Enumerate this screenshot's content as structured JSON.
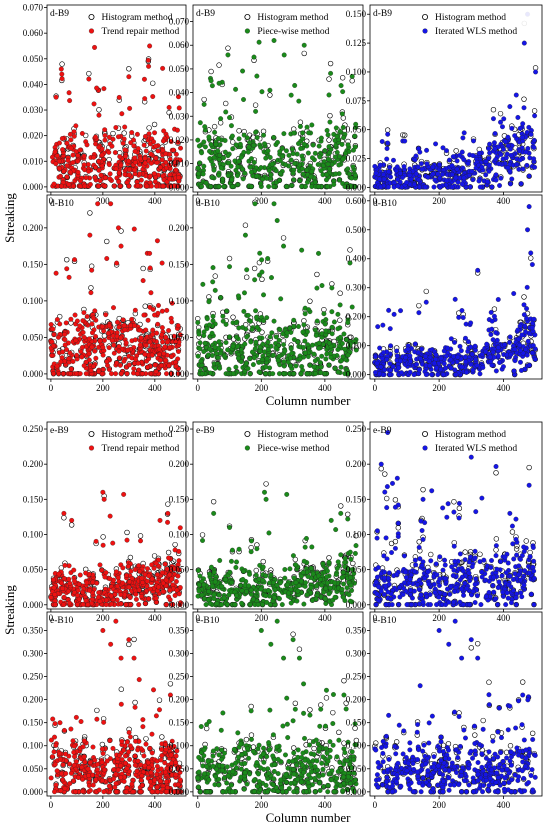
{
  "figure": {
    "ylabel": "Streaking",
    "xlabel": "Column number"
  },
  "legend_labels": {
    "histogram": "Histogram method",
    "trend": "Trend repair method",
    "piecewise": "Piece-wise method",
    "wls": "Iterated WLS method"
  },
  "colors": {
    "red": "#ee1111",
    "green": "#1a8a1a",
    "blue": "#1515e6",
    "histogram_edge": "#000000"
  },
  "chart_data": [
    {
      "type": "scatter",
      "panel": "d-B9",
      "method": "Trend repair method",
      "color": "red",
      "ylim": [
        -0.002,
        0.071
      ],
      "yticks": [
        0.0,
        0.01,
        0.02,
        0.03,
        0.04,
        0.05,
        0.06,
        0.07
      ],
      "ytick_labels": [
        "0.000",
        "0.010",
        "0.020",
        "0.030",
        "0.040",
        "0.050",
        "0.060",
        "0.070"
      ],
      "xlim": [
        -15,
        520
      ],
      "xticks": [
        0,
        200,
        400
      ],
      "base": 0.0085,
      "spread": 0.009,
      "tail": 0.045,
      "outliers": [
        [
          20,
          0.035
        ],
        [
          40,
          0.046
        ],
        [
          42,
          0.044
        ],
        [
          380,
          0.055
        ],
        [
          300,
          0.043
        ],
        [
          360,
          0.042
        ],
        [
          455,
          0.031
        ]
      ]
    },
    {
      "type": "scatter",
      "panel": "d-B9",
      "method": "Piece-wise method",
      "color": "green",
      "ylim": [
        -0.002,
        0.077
      ],
      "yticks": [
        0.0,
        0.01,
        0.02,
        0.03,
        0.04,
        0.05,
        0.06,
        0.07
      ],
      "ytick_labels": [
        "0.000",
        "0.010",
        "0.020",
        "0.030",
        "0.040",
        "0.050",
        "0.060",
        "0.070"
      ],
      "xlim": [
        -15,
        520
      ],
      "xticks": [
        0,
        200,
        400
      ],
      "base": 0.0095,
      "spread": 0.01,
      "tail": 0.048,
      "outliers": [
        [
          20,
          0.035
        ],
        [
          40,
          0.046
        ],
        [
          42,
          0.045
        ],
        [
          240,
          0.062
        ],
        [
          335,
          0.06
        ],
        [
          305,
          0.043
        ],
        [
          455,
          0.031
        ]
      ]
    },
    {
      "type": "scatter",
      "panel": "d-B9",
      "method": "Iterated WLS method",
      "color": "blue",
      "ylim": [
        -0.004,
        0.158
      ],
      "yticks": [
        0.0,
        0.025,
        0.05,
        0.075,
        0.1,
        0.125,
        0.15
      ],
      "ytick_labels": [
        "0.000",
        "0.025",
        "0.050",
        "0.075",
        "0.100",
        "0.125",
        "0.150"
      ],
      "xlim": [
        -15,
        520
      ],
      "xticks": [
        0,
        200,
        400
      ],
      "base": 0.007,
      "spread": 0.01,
      "tail": 0.03,
      "rising": 0.06,
      "outliers": [
        [
          40,
          0.046
        ],
        [
          475,
          0.15
        ],
        [
          465,
          0.125
        ],
        [
          440,
          0.08
        ],
        [
          500,
          0.1
        ],
        [
          420,
          0.07
        ]
      ]
    },
    {
      "type": "scatter",
      "panel": "d-B10",
      "method": "Trend repair method",
      "color": "red",
      "ylim": [
        -0.007,
        0.245
      ],
      "yticks": [
        0.0,
        0.05,
        0.1,
        0.15,
        0.2
      ],
      "ytick_labels": [
        "0.000",
        "0.050",
        "0.100",
        "0.150",
        "0.200"
      ],
      "xlim": [
        -15,
        520
      ],
      "xticks": [
        0,
        200,
        400
      ],
      "base": 0.035,
      "spread": 0.03,
      "tail": 0.13,
      "outliers": [
        [
          180,
          0.233
        ],
        [
          230,
          0.233
        ],
        [
          150,
          0.19
        ],
        [
          260,
          0.2
        ],
        [
          270,
          0.175
        ],
        [
          380,
          0.165
        ],
        [
          215,
          0.158
        ]
      ]
    },
    {
      "type": "scatter",
      "panel": "d-B10",
      "method": "Piece-wise method",
      "color": "green",
      "ylim": [
        -0.007,
        0.245
      ],
      "yticks": [
        0.0,
        0.05,
        0.1,
        0.15,
        0.2
      ],
      "ytick_labels": [
        "0.000",
        "0.050",
        "0.100",
        "0.150",
        "0.200"
      ],
      "xlim": [
        -15,
        520
      ],
      "xticks": [
        0,
        200,
        400
      ],
      "base": 0.035,
      "spread": 0.03,
      "tail": 0.13,
      "outliers": [
        [
          180,
          0.233
        ],
        [
          240,
          0.233
        ],
        [
          150,
          0.19
        ],
        [
          250,
          0.21
        ],
        [
          270,
          0.175
        ],
        [
          380,
          0.165
        ],
        [
          220,
          0.158
        ]
      ]
    },
    {
      "type": "scatter",
      "panel": "d-B10",
      "method": "Iterated WLS method",
      "color": "blue",
      "ylim": [
        -0.015,
        0.62
      ],
      "yticks": [
        0.0,
        0.1,
        0.2,
        0.3,
        0.4,
        0.5,
        0.6
      ],
      "ytick_labels": [
        "0.000",
        "0.100",
        "0.200",
        "0.300",
        "0.400",
        "0.500",
        "0.600"
      ],
      "xlim": [
        -15,
        520
      ],
      "xticks": [
        0,
        200,
        400
      ],
      "base": 0.04,
      "spread": 0.04,
      "tail": 0.18,
      "rising": 0.15,
      "outliers": [
        [
          480,
          0.58
        ],
        [
          475,
          0.5
        ],
        [
          485,
          0.42
        ],
        [
          490,
          0.38
        ],
        [
          320,
          0.36
        ],
        [
          250,
          0.26
        ],
        [
          160,
          0.25
        ]
      ]
    },
    {
      "type": "scatter",
      "panel": "e-B9",
      "method": "Trend repair method",
      "color": "red",
      "ylim": [
        -0.006,
        0.26
      ],
      "yticks": [
        0.0,
        0.05,
        0.1,
        0.15,
        0.2,
        0.25
      ],
      "ytick_labels": [
        "0.000",
        "0.050",
        "0.100",
        "0.150",
        "0.200",
        "0.250"
      ],
      "xlim": [
        -15,
        520
      ],
      "xticks": [
        0,
        200,
        400
      ],
      "base": 0.02,
      "spread": 0.02,
      "tail": 0.08,
      "rising": 0.04,
      "outliers": [
        [
          50,
          0.13
        ],
        [
          200,
          0.16
        ],
        [
          205,
          0.15
        ],
        [
          280,
          0.157
        ],
        [
          450,
          0.13
        ],
        [
          420,
          0.12
        ],
        [
          80,
          0.12
        ]
      ]
    },
    {
      "type": "scatter",
      "panel": "e-B9",
      "method": "Piece-wise method",
      "color": "green",
      "ylim": [
        -0.006,
        0.26
      ],
      "yticks": [
        0.0,
        0.05,
        0.1,
        0.15,
        0.2,
        0.25
      ],
      "ytick_labels": [
        "0.000",
        "0.050",
        "0.100",
        "0.150",
        "0.200",
        "0.250"
      ],
      "xlim": [
        -15,
        520
      ],
      "xticks": [
        0,
        200,
        400
      ],
      "base": 0.02,
      "spread": 0.02,
      "tail": 0.08,
      "rising": 0.04,
      "outliers": [
        [
          50,
          0.13
        ],
        [
          210,
          0.16
        ],
        [
          215,
          0.15
        ],
        [
          280,
          0.157
        ],
        [
          450,
          0.13
        ],
        [
          420,
          0.12
        ],
        [
          100,
          0.11
        ]
      ]
    },
    {
      "type": "scatter",
      "panel": "e-B9",
      "method": "Iterated WLS method",
      "color": "blue",
      "ylim": [
        -0.006,
        0.26
      ],
      "yticks": [
        0.0,
        0.05,
        0.1,
        0.15,
        0.2,
        0.25
      ],
      "ytick_labels": [
        "0.000",
        "0.050",
        "0.100",
        "0.150",
        "0.200",
        "0.250"
      ],
      "xlim": [
        -15,
        520
      ],
      "xticks": [
        0,
        200,
        400
      ],
      "base": 0.025,
      "spread": 0.025,
      "tail": 0.14,
      "rising": 0.04,
      "outliers": [
        [
          40,
          0.245
        ],
        [
          300,
          0.21
        ],
        [
          20,
          0.2
        ],
        [
          70,
          0.18
        ],
        [
          480,
          0.17
        ],
        [
          420,
          0.13
        ],
        [
          150,
          0.15
        ]
      ]
    },
    {
      "type": "scatter",
      "panel": "e-B10",
      "method": "Trend repair method",
      "color": "red",
      "ylim": [
        -0.009,
        0.39
      ],
      "yticks": [
        0.0,
        0.05,
        0.1,
        0.15,
        0.2,
        0.25,
        0.3,
        0.35
      ],
      "ytick_labels": [
        "0.000",
        "0.050",
        "0.100",
        "0.150",
        "0.200",
        "0.250",
        "0.300",
        "0.350"
      ],
      "xlim": [
        -15,
        520
      ],
      "xticks": [
        0,
        200,
        400
      ],
      "base": 0.045,
      "spread": 0.04,
      "tail": 0.15,
      "outliers": [
        [
          250,
          0.37
        ],
        [
          200,
          0.35
        ],
        [
          300,
          0.33
        ],
        [
          230,
          0.32
        ],
        [
          320,
          0.29
        ],
        [
          270,
          0.29
        ],
        [
          460,
          0.21
        ]
      ]
    },
    {
      "type": "scatter",
      "panel": "e-B10",
      "method": "Piece-wise method",
      "color": "green",
      "ylim": [
        -0.009,
        0.39
      ],
      "yticks": [
        0.0,
        0.05,
        0.1,
        0.15,
        0.2,
        0.25,
        0.3,
        0.35
      ],
      "ytick_labels": [
        "0.000",
        "0.050",
        "0.100",
        "0.150",
        "0.200",
        "0.250",
        "0.300",
        "0.350"
      ],
      "xlim": [
        -15,
        520
      ],
      "xticks": [
        0,
        200,
        400
      ],
      "base": 0.045,
      "spread": 0.04,
      "tail": 0.15,
      "outliers": [
        [
          250,
          0.37
        ],
        [
          200,
          0.35
        ],
        [
          300,
          0.33
        ],
        [
          230,
          0.32
        ],
        [
          320,
          0.29
        ],
        [
          270,
          0.29
        ],
        [
          460,
          0.21
        ]
      ]
    },
    {
      "type": "scatter",
      "panel": "e-B10",
      "method": "Iterated WLS method",
      "color": "blue",
      "ylim": [
        -0.009,
        0.39
      ],
      "yticks": [
        0.0,
        0.05,
        0.1,
        0.15,
        0.2,
        0.25,
        0.3,
        0.35
      ],
      "ytick_labels": [
        "0.000",
        "0.050",
        "0.100",
        "0.150",
        "0.200",
        "0.250",
        "0.300",
        "0.350"
      ],
      "xlim": [
        -15,
        520
      ],
      "xticks": [
        0,
        200,
        400
      ],
      "base": 0.045,
      "spread": 0.04,
      "tail": 0.15,
      "outliers": [
        [
          250,
          0.37
        ],
        [
          200,
          0.35
        ],
        [
          300,
          0.33
        ],
        [
          230,
          0.32
        ],
        [
          320,
          0.29
        ],
        [
          270,
          0.29
        ],
        [
          460,
          0.21
        ]
      ]
    }
  ]
}
